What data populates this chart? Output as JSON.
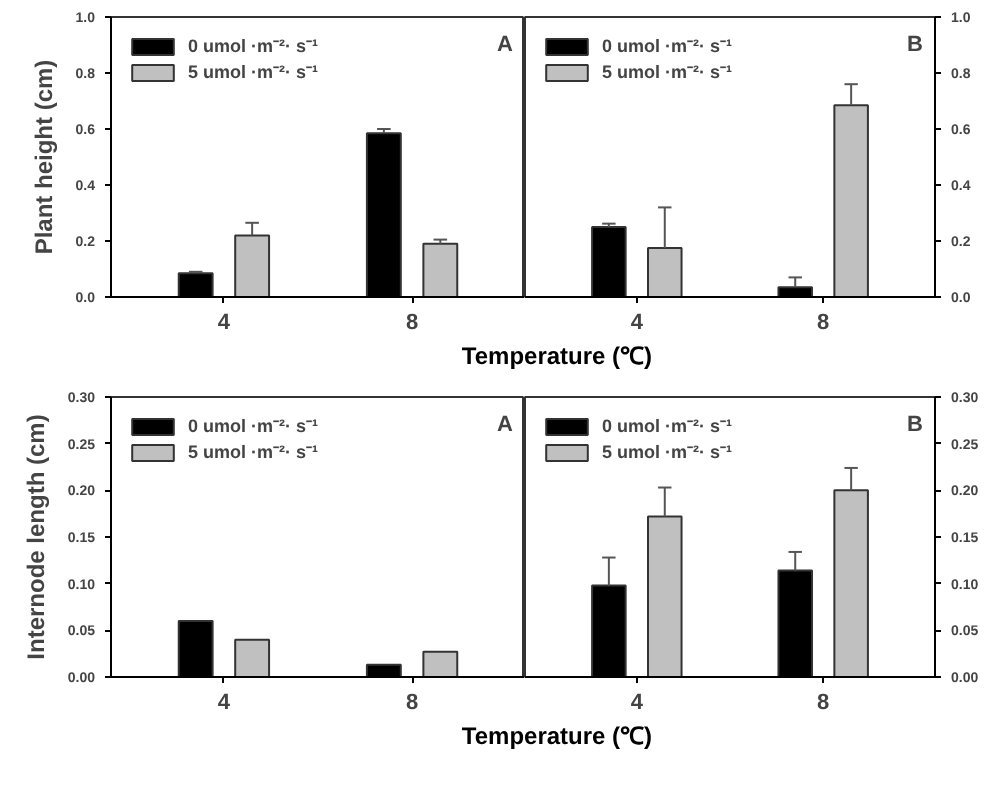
{
  "chart_data": [
    {
      "type": "bar",
      "ylabel": "Plant height (cm)",
      "xlabel": "Temperature (℃)",
      "annotations": [
        "A"
      ],
      "categories": [
        "4",
        "8"
      ],
      "legend": "top left",
      "ylim": [
        0,
        1.0
      ],
      "yticks": [
        {
          "value": 0,
          "label": "0.0"
        },
        {
          "value": 0.2,
          "label": "0.2"
        },
        {
          "value": 0.4,
          "label": "0.4"
        },
        {
          "value": 0.6,
          "label": "0.6"
        },
        {
          "value": 0.8,
          "label": "0.8"
        },
        {
          "value": 1.0,
          "label": "1.0"
        }
      ],
      "grid": false,
      "series": [
        {
          "name": "0 umol ·m⁻²· s⁻¹",
          "color": "#000000",
          "values": [
            0.085,
            0.585
          ],
          "errors": [
            [
              0.085,
              0.09
            ],
            [
              0.585,
              0.6
            ]
          ]
        },
        {
          "name": "5 umol ·m⁻²· s⁻¹",
          "color": "#c0c0c0",
          "values": [
            0.22,
            0.19
          ],
          "errors": [
            [
              0.22,
              0.265
            ],
            [
              0.19,
              0.205
            ]
          ]
        }
      ]
    },
    {
      "type": "bar",
      "annotations": [
        "B"
      ],
      "categories": [
        "4",
        "8"
      ],
      "legend": "top left",
      "ylim": [
        0,
        1.0
      ],
      "yticks": [
        {
          "value": 0,
          "label": "0.0"
        },
        {
          "value": 0.2,
          "label": "0.2"
        },
        {
          "value": 0.4,
          "label": "0.4"
        },
        {
          "value": 0.6,
          "label": "0.6"
        },
        {
          "value": 0.8,
          "label": "0.8"
        },
        {
          "value": 1.0,
          "label": "1.0"
        }
      ],
      "grid": false,
      "series": [
        {
          "name": "0 umol ·m⁻²· s⁻¹",
          "color": "#000000",
          "values": [
            0.25,
            0.035
          ],
          "errors": [
            [
              0.25,
              0.262
            ],
            [
              0.035,
              0.07
            ]
          ]
        },
        {
          "name": "5 umol ·m⁻²· s⁻¹",
          "color": "#c0c0c0",
          "values": [
            0.175,
            0.685
          ],
          "errors": [
            [
              0.175,
              0.32
            ],
            [
              0.685,
              0.76
            ]
          ]
        }
      ]
    },
    {
      "type": "bar",
      "ylabel": "Internode length (cm)",
      "xlabel": "Temperature (℃)",
      "annotations": [
        "A"
      ],
      "categories": [
        "4",
        "8"
      ],
      "legend": "top left",
      "ylim": [
        0,
        0.3
      ],
      "yticks": [
        {
          "value": 0,
          "label": "0.00"
        },
        {
          "value": 0.05,
          "label": "0.05"
        },
        {
          "value": 0.1,
          "label": "0.10"
        },
        {
          "value": 0.15,
          "label": "0.15"
        },
        {
          "value": 0.2,
          "label": "0.20"
        },
        {
          "value": 0.25,
          "label": "0.25"
        },
        {
          "value": 0.3,
          "label": "0.30"
        }
      ],
      "grid": false,
      "series": [
        {
          "name": "0 umol ·m⁻²· s⁻¹",
          "color": "#000000",
          "values": [
            0.06,
            0.013
          ]
        },
        {
          "name": "5 umol ·m⁻²· s⁻¹",
          "color": "#c0c0c0",
          "values": [
            0.04,
            0.027
          ]
        }
      ]
    },
    {
      "type": "bar",
      "annotations": [
        "B"
      ],
      "categories": [
        "4",
        "8"
      ],
      "legend": "top left",
      "ylim": [
        0,
        0.3
      ],
      "yticks": [
        {
          "value": 0,
          "label": "0.00"
        },
        {
          "value": 0.05,
          "label": "0.05"
        },
        {
          "value": 0.1,
          "label": "0.10"
        },
        {
          "value": 0.15,
          "label": "0.15"
        },
        {
          "value": 0.2,
          "label": "0.20"
        },
        {
          "value": 0.25,
          "label": "0.25"
        },
        {
          "value": 0.3,
          "label": "0.30"
        }
      ],
      "grid": false,
      "series": [
        {
          "name": "0 umol ·m⁻²· s⁻¹",
          "color": "#000000",
          "values": [
            0.098,
            0.114
          ],
          "errors": [
            [
              0.098,
              0.128
            ],
            [
              0.114,
              0.134
            ]
          ]
        },
        {
          "name": "5 umol ·m⁻²· s⁻¹",
          "color": "#c0c0c0",
          "values": [
            0.172,
            0.2
          ],
          "errors": [
            [
              0.172,
              0.203
            ],
            [
              0.2,
              0.224
            ]
          ]
        }
      ]
    }
  ]
}
